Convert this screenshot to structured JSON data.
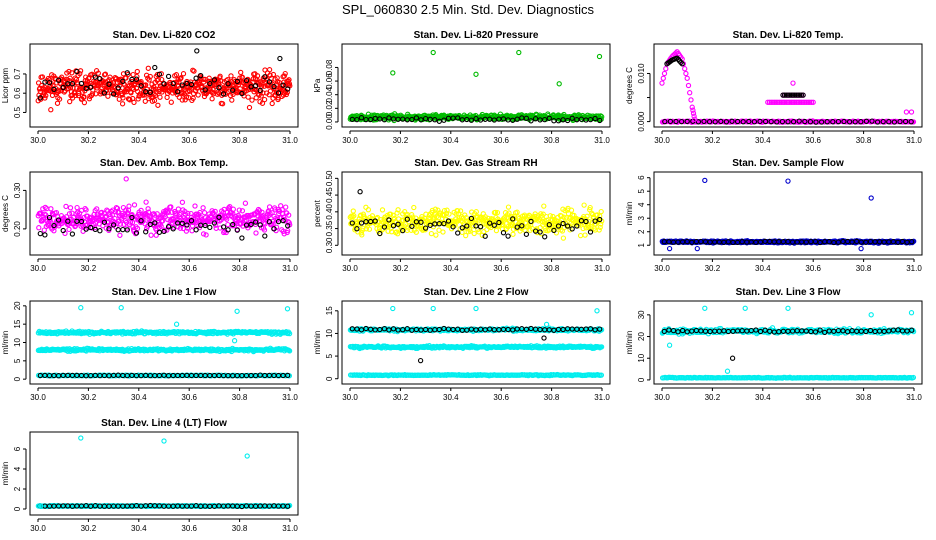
{
  "title": "SPL_060830  2.5 Min. Std. Dev. Diagnostics",
  "chart_data": [
    {
      "type": "scatter",
      "id": "co2",
      "title": "Stan. Dev. Li-820 CO2",
      "ylabel": "Licor ppm",
      "xlim": [
        30.0,
        31.0
      ],
      "xticks": [
        "30.0",
        "30.2",
        "30.4",
        "30.6",
        "30.8",
        "31.0"
      ],
      "ylim": [
        0.44,
        0.84
      ],
      "yticks": [
        0.5,
        0.6,
        0.7
      ],
      "ytick_labels": [
        "0.5",
        "0.6",
        "0.7"
      ],
      "series": [
        {
          "name": "noise",
          "color": "#ff0000",
          "center": 0.63,
          "spread": 0.13,
          "n": 600,
          "seed": 11
        },
        {
          "name": "hourly",
          "color": "#000000",
          "center": 0.65,
          "spread": 0.12,
          "n": 55,
          "seed": 12
        }
      ],
      "outliers": [
        {
          "x": 30.63,
          "y": 0.82,
          "color": "#000000"
        },
        {
          "x": 30.96,
          "y": 0.78,
          "color": "#000000"
        }
      ]
    },
    {
      "type": "scatter",
      "id": "pressure",
      "title": "Stan. Dev. Li-820 Pressure",
      "ylabel": "kPa",
      "xlim": [
        30.0,
        31.0
      ],
      "xticks": [
        "30.0",
        "30.2",
        "30.4",
        "30.6",
        "30.8",
        "31.0"
      ],
      "ylim": [
        -0.003,
        0.11
      ],
      "yticks": [
        0.0,
        0.02,
        0.04,
        0.06,
        0.08
      ],
      "ytick_labels": [
        "0.00",
        "0.02",
        "0.04",
        "0.06",
        "0.08"
      ],
      "series": [
        {
          "name": "noise",
          "color": "#00bb00",
          "center": 0.007,
          "spread": 0.006,
          "n": 500,
          "seed": 21
        },
        {
          "name": "hourly",
          "color": "#000000",
          "center": 0.004,
          "spread": 0.004,
          "n": 55,
          "seed": 22
        }
      ],
      "outliers": [
        {
          "x": 30.17,
          "y": 0.072,
          "color": "#00bb00"
        },
        {
          "x": 30.33,
          "y": 0.102,
          "color": "#00bb00"
        },
        {
          "x": 30.5,
          "y": 0.07,
          "color": "#00bb00"
        },
        {
          "x": 30.67,
          "y": 0.102,
          "color": "#00bb00"
        },
        {
          "x": 30.83,
          "y": 0.056,
          "color": "#00bb00"
        },
        {
          "x": 30.99,
          "y": 0.096,
          "color": "#00bb00"
        }
      ]
    },
    {
      "type": "scatter",
      "id": "temp",
      "title": "Stan. Dev. Li-820 Temp.",
      "ylabel": "degrees C",
      "xlim": [
        30.0,
        31.0
      ],
      "xticks": [
        "30.0",
        "30.2",
        "30.4",
        "30.6",
        "30.8",
        "31.0"
      ],
      "ylim": [
        -0.0005,
        0.0155
      ],
      "yticks": [
        0.0,
        0.005,
        0.01
      ],
      "ytick_labels": [
        "0.000",
        "",
        "0.010"
      ],
      "series": [
        {
          "name": "baseline",
          "color": "#ff00ff",
          "center": 0.0,
          "spread": 0.0002,
          "n": 250,
          "seed": 31
        },
        {
          "name": "hourly",
          "color": "#000000",
          "center": 0.0,
          "spread": 0.0002,
          "n": 45,
          "seed": 32
        }
      ],
      "curves": [
        {
          "color": "#ff00ff",
          "points": [
            [
              30.0,
              0.008
            ],
            [
              30.02,
              0.012
            ],
            [
              30.04,
              0.0135
            ],
            [
              30.06,
              0.0145
            ],
            [
              30.08,
              0.013
            ],
            [
              30.1,
              0.009
            ],
            [
              30.12,
              0.003
            ],
            [
              30.13,
              0.0005
            ]
          ]
        },
        {
          "color": "#000000",
          "points": [
            [
              30.02,
              0.012
            ],
            [
              30.04,
              0.0128
            ],
            [
              30.06,
              0.0132
            ],
            [
              30.08,
              0.012
            ]
          ]
        }
      ],
      "bands": [
        {
          "color": "#ff00ff",
          "x0": 30.42,
          "x1": 30.6,
          "y": 0.004
        },
        {
          "color": "#ff00ff",
          "x0": 30.48,
          "x1": 30.56,
          "y": 0.0055
        },
        {
          "color": "#000000",
          "x0": 30.48,
          "x1": 30.56,
          "y": 0.0055
        }
      ],
      "outliers": [
        {
          "x": 30.52,
          "y": 0.008,
          "color": "#ff00ff"
        },
        {
          "x": 30.97,
          "y": 0.002,
          "color": "#ff00ff"
        },
        {
          "x": 30.99,
          "y": 0.002,
          "color": "#ff00ff"
        }
      ]
    },
    {
      "type": "scatter",
      "id": "boxtemp",
      "title": "Stan. Dev. Amb. Box Temp.",
      "ylabel": "degrees C",
      "xlim": [
        30.0,
        31.0
      ],
      "xticks": [
        "30.0",
        "30.2",
        "30.4",
        "30.6",
        "30.8",
        "31.0"
      ],
      "ylim": [
        0.14,
        0.34
      ],
      "yticks": [
        0.2,
        0.3
      ],
      "ytick_labels": [
        "0.20",
        "0.30"
      ],
      "series": [
        {
          "name": "noise",
          "color": "#ff00ff",
          "center": 0.225,
          "spread": 0.055,
          "n": 500,
          "seed": 41
        },
        {
          "name": "hourly",
          "color": "#000000",
          "center": 0.205,
          "spread": 0.04,
          "n": 55,
          "seed": 42
        }
      ],
      "outliers": [
        {
          "x": 30.35,
          "y": 0.33,
          "color": "#ff00ff"
        }
      ]
    },
    {
      "type": "scatter",
      "id": "rh",
      "title": "Stan. Dev. Gas Stream RH",
      "ylabel": "percent",
      "xlim": [
        30.0,
        31.0
      ],
      "xticks": [
        "30.0",
        "30.2",
        "30.4",
        "30.6",
        "30.8",
        "31.0"
      ],
      "ylim": [
        0.28,
        0.51
      ],
      "yticks": [
        0.3,
        0.35,
        0.4,
        0.45,
        0.5
      ],
      "ytick_labels": [
        "0.30",
        "0.35",
        "0.40",
        "0.45",
        "0.50"
      ],
      "series": [
        {
          "name": "noise",
          "color": "#ffff00",
          "center": 0.37,
          "spread": 0.06,
          "n": 500,
          "seed": 51
        },
        {
          "name": "hourly",
          "color": "#000000",
          "center": 0.36,
          "spread": 0.05,
          "n": 55,
          "seed": 52
        }
      ],
      "outliers": [
        {
          "x": 30.04,
          "y": 0.46,
          "color": "#000000"
        }
      ]
    },
    {
      "type": "scatter",
      "id": "sampleflow",
      "title": "Stan. Dev. Sample Flow",
      "ylabel": "ml/min",
      "xlim": [
        30.0,
        31.0
      ],
      "xticks": [
        "30.0",
        "30.2",
        "30.4",
        "30.6",
        "30.8",
        "31.0"
      ],
      "ylim": [
        0.5,
        6.2
      ],
      "yticks": [
        1,
        2,
        3,
        4,
        5,
        6
      ],
      "ytick_labels": [
        "1",
        "2",
        "3",
        "4",
        "5",
        "6"
      ],
      "series": [
        {
          "name": "noise",
          "color": "#0000cc",
          "center": 1.25,
          "spread": 0.12,
          "n": 500,
          "seed": 61
        },
        {
          "name": "hourly",
          "color": "#000000",
          "center": 1.25,
          "spread": 0.08,
          "n": 55,
          "seed": 62
        }
      ],
      "outliers": [
        {
          "x": 30.17,
          "y": 5.8,
          "color": "#0000cc"
        },
        {
          "x": 30.5,
          "y": 5.75,
          "color": "#0000cc"
        },
        {
          "x": 30.83,
          "y": 4.5,
          "color": "#0000cc"
        },
        {
          "x": 30.03,
          "y": 0.75,
          "color": "#0000cc"
        },
        {
          "x": 30.14,
          "y": 0.75,
          "color": "#0000cc"
        },
        {
          "x": 30.79,
          "y": 0.75,
          "color": "#0000cc"
        }
      ]
    },
    {
      "type": "scatter",
      "id": "line1",
      "title": "Stan. Dev. Line 1 Flow",
      "ylabel": "ml/min",
      "xlim": [
        30.0,
        31.0
      ],
      "xticks": [
        "30.0",
        "30.2",
        "30.4",
        "30.6",
        "30.8",
        "31.0"
      ],
      "ylim": [
        -0.5,
        20.5
      ],
      "yticks": [
        0,
        5,
        10,
        15,
        20
      ],
      "ytick_labels": [
        "0",
        "5",
        "10",
        "15",
        "20"
      ],
      "series": [
        {
          "name": "band-upper",
          "color": "#00eeee",
          "center": 12.7,
          "spread": 0.6,
          "n": 300,
          "seed": 71
        },
        {
          "name": "band-lower",
          "color": "#00eeee",
          "center": 8.0,
          "spread": 0.6,
          "n": 300,
          "seed": 72
        },
        {
          "name": "base",
          "color": "#00eeee",
          "center": 1.0,
          "spread": 0.2,
          "n": 200,
          "seed": 73
        },
        {
          "name": "hourly",
          "color": "#000000",
          "center": 1.0,
          "spread": 0.15,
          "n": 55,
          "seed": 74
        }
      ],
      "outliers": [
        {
          "x": 30.17,
          "y": 19.5,
          "color": "#00eeee"
        },
        {
          "x": 30.33,
          "y": 19.5,
          "color": "#00eeee"
        },
        {
          "x": 30.55,
          "y": 15,
          "color": "#00eeee"
        },
        {
          "x": 30.79,
          "y": 18.5,
          "color": "#00eeee"
        },
        {
          "x": 30.99,
          "y": 19.2,
          "color": "#00eeee"
        },
        {
          "x": 30.78,
          "y": 10.5,
          "color": "#00eeee"
        }
      ]
    },
    {
      "type": "scatter",
      "id": "line2",
      "title": "Stan. Dev. Line 2 Flow",
      "ylabel": "ml/min",
      "xlim": [
        30.0,
        31.0
      ],
      "xticks": [
        "30.0",
        "30.2",
        "30.4",
        "30.6",
        "30.8",
        "31.0"
      ],
      "ylim": [
        -0.5,
        16.5
      ],
      "yticks": [
        0,
        5,
        10,
        15
      ],
      "ytick_labels": [
        "0",
        "5",
        "10",
        "15"
      ],
      "series": [
        {
          "name": "band-upper",
          "color": "#00eeee",
          "center": 10.8,
          "spread": 0.5,
          "n": 300,
          "seed": 81
        },
        {
          "name": "hourly",
          "color": "#000000",
          "center": 10.9,
          "spread": 0.35,
          "n": 55,
          "seed": 82
        },
        {
          "name": "band-lower",
          "color": "#00eeee",
          "center": 7.0,
          "spread": 0.4,
          "n": 300,
          "seed": 83
        },
        {
          "name": "base",
          "color": "#00eeee",
          "center": 0.8,
          "spread": 0.2,
          "n": 200,
          "seed": 84
        }
      ],
      "outliers": [
        {
          "x": 30.17,
          "y": 15.5,
          "color": "#00eeee"
        },
        {
          "x": 30.33,
          "y": 15.5,
          "color": "#00eeee"
        },
        {
          "x": 30.5,
          "y": 15.5,
          "color": "#00eeee"
        },
        {
          "x": 30.78,
          "y": 12.0,
          "color": "#00eeee"
        },
        {
          "x": 30.98,
          "y": 15.0,
          "color": "#00eeee"
        },
        {
          "x": 30.28,
          "y": 4.0,
          "color": "#000000"
        },
        {
          "x": 30.77,
          "y": 9.0,
          "color": "#000000"
        }
      ]
    },
    {
      "type": "scatter",
      "id": "line3",
      "title": "Stan. Dev. Line 3 Flow",
      "ylabel": "ml/min",
      "xlim": [
        30.0,
        31.0
      ],
      "xticks": [
        "30.0",
        "30.2",
        "30.4",
        "30.6",
        "30.8",
        "31.0"
      ],
      "ylim": [
        -0.5,
        35
      ],
      "yticks": [
        0,
        10,
        20,
        30
      ],
      "ytick_labels": [
        "0",
        "10",
        "20",
        "30"
      ],
      "series": [
        {
          "name": "band",
          "color": "#00eeee",
          "center": 22.5,
          "spread": 1.8,
          "n": 350,
          "seed": 91
        },
        {
          "name": "hourly",
          "color": "#000000",
          "center": 22.5,
          "spread": 1.0,
          "n": 55,
          "seed": 92
        },
        {
          "name": "base",
          "color": "#00eeee",
          "center": 1.0,
          "spread": 0.3,
          "n": 200,
          "seed": 93
        }
      ],
      "outliers": [
        {
          "x": 30.17,
          "y": 33,
          "color": "#00eeee"
        },
        {
          "x": 30.33,
          "y": 33,
          "color": "#00eeee"
        },
        {
          "x": 30.5,
          "y": 33,
          "color": "#00eeee"
        },
        {
          "x": 30.83,
          "y": 30,
          "color": "#00eeee"
        },
        {
          "x": 30.99,
          "y": 31,
          "color": "#00eeee"
        },
        {
          "x": 30.03,
          "y": 16,
          "color": "#00eeee"
        },
        {
          "x": 30.28,
          "y": 10,
          "color": "#000000"
        },
        {
          "x": 30.26,
          "y": 4,
          "color": "#00eeee"
        }
      ]
    },
    {
      "type": "scatter",
      "id": "line4",
      "title": "Stan. Dev. Line 4 (LT) Flow",
      "ylabel": "ml/min",
      "xlim": [
        30.0,
        31.0
      ],
      "xticks": [
        "30.0",
        "30.2",
        "30.4",
        "30.6",
        "30.8",
        "31.0"
      ],
      "ylim": [
        -0.3,
        7.4
      ],
      "yticks": [
        0,
        2,
        4,
        6
      ],
      "ytick_labels": [
        "0",
        "2",
        "4",
        "6"
      ],
      "series": [
        {
          "name": "base",
          "color": "#00eeee",
          "center": 0.3,
          "spread": 0.08,
          "n": 300,
          "seed": 101
        },
        {
          "name": "hourly",
          "color": "#000000",
          "center": 0.3,
          "spread": 0.06,
          "n": 55,
          "seed": 102
        }
      ],
      "outliers": [
        {
          "x": 30.17,
          "y": 7.1,
          "color": "#00eeee"
        },
        {
          "x": 30.5,
          "y": 6.8,
          "color": "#00eeee"
        },
        {
          "x": 30.83,
          "y": 5.3,
          "color": "#00eeee"
        },
        {
          "x": 30.01,
          "y": 0.3,
          "color": "#00eeee"
        }
      ]
    }
  ]
}
